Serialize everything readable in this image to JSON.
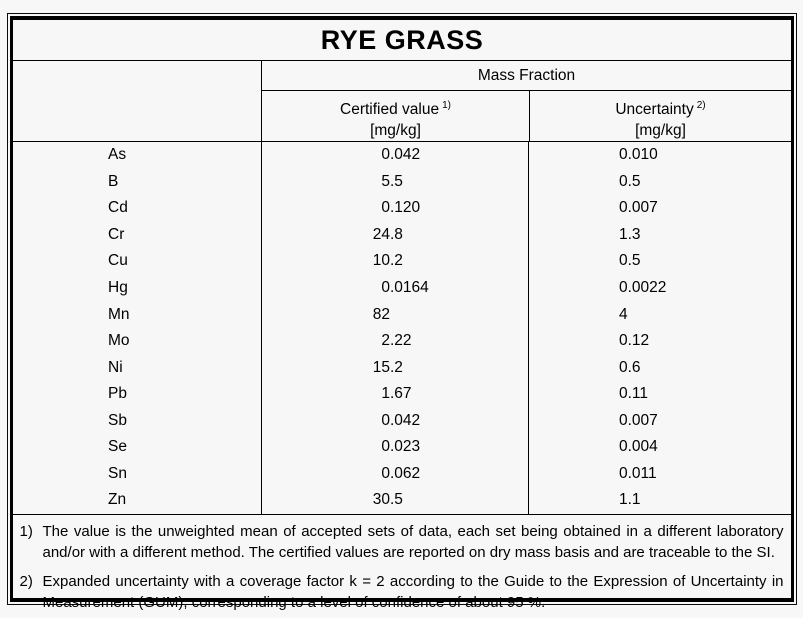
{
  "title": "RYE GRASS",
  "colors": {
    "text": "#000000",
    "rule": "#000000",
    "background": "#f7f7f7"
  },
  "table": {
    "group_header": "Mass Fraction",
    "columns": {
      "certified": {
        "label": "Certified value",
        "sup": "1)",
        "unit": "[mg/kg]"
      },
      "uncertainty": {
        "label": "Uncertainty",
        "sup": "2)",
        "unit": "[mg/kg]"
      }
    },
    "rows": [
      {
        "element": "As",
        "certified": "0.042",
        "certified_int": "0",
        "certified_frac": ".042",
        "uncertainty": "0.010"
      },
      {
        "element": "B",
        "certified": "5.5",
        "certified_int": "5",
        "certified_frac": ".5",
        "uncertainty": "0.5"
      },
      {
        "element": "Cd",
        "certified": "0.120",
        "certified_int": "0",
        "certified_frac": ".120",
        "uncertainty": "0.007"
      },
      {
        "element": "Cr",
        "certified": "24.8",
        "certified_int": "24",
        "certified_frac": ".8",
        "uncertainty": "1.3"
      },
      {
        "element": "Cu",
        "certified": "10.2",
        "certified_int": "10",
        "certified_frac": ".2",
        "uncertainty": "0.5"
      },
      {
        "element": "Hg",
        "certified": "0.0164",
        "certified_int": "0",
        "certified_frac": ".0164",
        "uncertainty": "0.0022"
      },
      {
        "element": "Mn",
        "certified": "82",
        "certified_int": "82",
        "certified_frac": "",
        "uncertainty": "4"
      },
      {
        "element": "Mo",
        "certified": "2.22",
        "certified_int": "2",
        "certified_frac": ".22",
        "uncertainty": "0.12"
      },
      {
        "element": "Ni",
        "certified": "15.2",
        "certified_int": "15",
        "certified_frac": ".2",
        "uncertainty": "0.6"
      },
      {
        "element": "Pb",
        "certified": "1.67",
        "certified_int": "1",
        "certified_frac": ".67",
        "uncertainty": "0.11"
      },
      {
        "element": "Sb",
        "certified": "0.042",
        "certified_int": "0",
        "certified_frac": ".042",
        "uncertainty": "0.007"
      },
      {
        "element": "Se",
        "certified": "0.023",
        "certified_int": "0",
        "certified_frac": ".023",
        "uncertainty": "0.004"
      },
      {
        "element": "Sn",
        "certified": "0.062",
        "certified_int": "0",
        "certified_frac": ".062",
        "uncertainty": "0.011"
      },
      {
        "element": "Zn",
        "certified": "30.5",
        "certified_int": "30",
        "certified_frac": ".5",
        "uncertainty": "1.1"
      }
    ]
  },
  "footnotes": [
    {
      "marker": "1)",
      "text": "The value is the unweighted mean of accepted sets of data, each set being obtained in a different laboratory and/or with a different method. The certified values are reported on dry mass basis and are traceable to the SI."
    },
    {
      "marker": "2)",
      "text": "Expanded uncertainty with a coverage factor k = 2 according to the Guide to the Expression of Uncertainty in Measurement (GUM), corresponding to a level of confidence of about 95 %."
    }
  ]
}
